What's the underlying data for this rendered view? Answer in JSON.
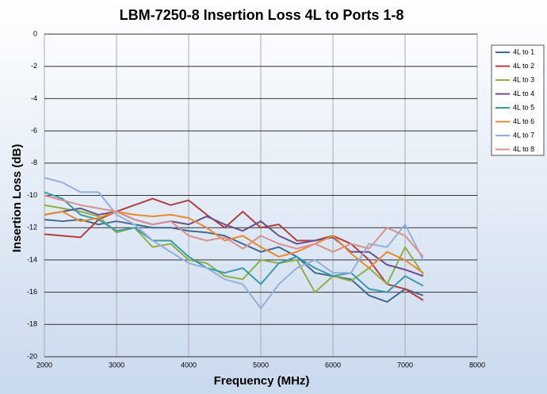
{
  "chart_data": {
    "type": "line",
    "title": "LBM-7250-8 Insertion Loss 4L to Ports 1-8",
    "x_label": "Frequency (MHz)",
    "y_label": "Insertion Loss (dB)",
    "x": [
      2000,
      2250,
      2500,
      2750,
      3000,
      3250,
      3500,
      3750,
      4000,
      4250,
      4500,
      4750,
      5000,
      5250,
      5500,
      5750,
      6000,
      6250,
      6500,
      6750,
      7000,
      7250
    ],
    "xlim": [
      2000,
      8000
    ],
    "xticks": [
      2000,
      3000,
      4000,
      5000,
      6000,
      7000,
      8000
    ],
    "ylim": [
      -20,
      0
    ],
    "yticks": [
      0,
      -2,
      -4,
      -6,
      -8,
      -10,
      -12,
      -14,
      -16,
      -18,
      -20
    ],
    "grid": true,
    "legend": "right",
    "series": [
      {
        "name": "4L to 1",
        "color": "#44698f",
        "values": [
          -11.5,
          -11.6,
          -11.5,
          -11.8,
          -11.6,
          -11.8,
          -12.0,
          -12.0,
          -12.2,
          -12.3,
          -12.5,
          -13.0,
          -13.5,
          -13.2,
          -13.8,
          -14.8,
          -15.0,
          -15.2,
          -16.2,
          -16.6,
          -15.8,
          -16.2
        ]
      },
      {
        "name": "4L to 2",
        "color": "#b04040",
        "values": [
          -12.4,
          -12.5,
          -12.6,
          -11.5,
          -11.0,
          -10.6,
          -10.2,
          -10.6,
          -10.3,
          -11.2,
          -12.0,
          -11.0,
          -12.0,
          -11.8,
          -12.8,
          -12.8,
          -12.5,
          -13.0,
          -14.0,
          -15.5,
          -15.8,
          -16.5
        ]
      },
      {
        "name": "4L to 3",
        "color": "#8cb043",
        "values": [
          -10.6,
          -10.8,
          -11.0,
          -11.3,
          -12.3,
          -12.0,
          -13.2,
          -13.0,
          -14.0,
          -14.2,
          -15.0,
          -15.2,
          -14.0,
          -14.2,
          -14.0,
          -16.0,
          -15.0,
          -15.3,
          -14.5,
          -15.5,
          -13.2,
          -14.9
        ]
      },
      {
        "name": "4L to 4",
        "color": "#6a4f8f",
        "values": [
          -11.2,
          -11.0,
          -10.8,
          -11.2,
          -11.0,
          -11.5,
          -11.8,
          -11.6,
          -11.8,
          -11.3,
          -11.8,
          -12.2,
          -11.6,
          -12.5,
          -13.0,
          -12.8,
          -12.6,
          -13.5,
          -13.5,
          -14.3,
          -14.6,
          -15.0
        ]
      },
      {
        "name": "4L to 5",
        "color": "#3a9aab",
        "values": [
          -9.8,
          -10.2,
          -11.2,
          -11.5,
          -12.2,
          -12.0,
          -12.8,
          -12.8,
          -13.8,
          -14.5,
          -14.8,
          -14.5,
          -15.5,
          -14.2,
          -13.8,
          -14.5,
          -15.0,
          -14.8,
          -15.8,
          -16.0,
          -15.0,
          -15.6
        ]
      },
      {
        "name": "4L to 6",
        "color": "#e88a30",
        "values": [
          -11.2,
          -11.0,
          -11.6,
          -11.4,
          -11.0,
          -11.2,
          -11.3,
          -11.2,
          -11.4,
          -12.0,
          -12.8,
          -12.5,
          -13.2,
          -13.8,
          -13.5,
          -13.0,
          -12.5,
          -13.6,
          -14.5,
          -13.5,
          -14.0,
          -14.8
        ]
      },
      {
        "name": "4L to 7",
        "color": "#95b0d8",
        "values": [
          -8.9,
          -9.2,
          -9.8,
          -9.8,
          -11.2,
          -11.8,
          -12.8,
          -13.5,
          -14.2,
          -14.5,
          -15.2,
          -15.5,
          -17.0,
          -15.5,
          -14.5,
          -14.0,
          -14.8,
          -14.8,
          -13.0,
          -13.2,
          -11.8,
          -14.0
        ]
      },
      {
        "name": "4L to 8",
        "color": "#d89090",
        "values": [
          -10.0,
          -10.3,
          -10.6,
          -10.8,
          -11.0,
          -11.5,
          -11.8,
          -11.6,
          -12.5,
          -12.8,
          -12.6,
          -13.3,
          -12.5,
          -13.0,
          -13.3,
          -13.0,
          -13.5,
          -13.0,
          -13.3,
          -12.0,
          -12.5,
          -13.8
        ]
      }
    ]
  }
}
